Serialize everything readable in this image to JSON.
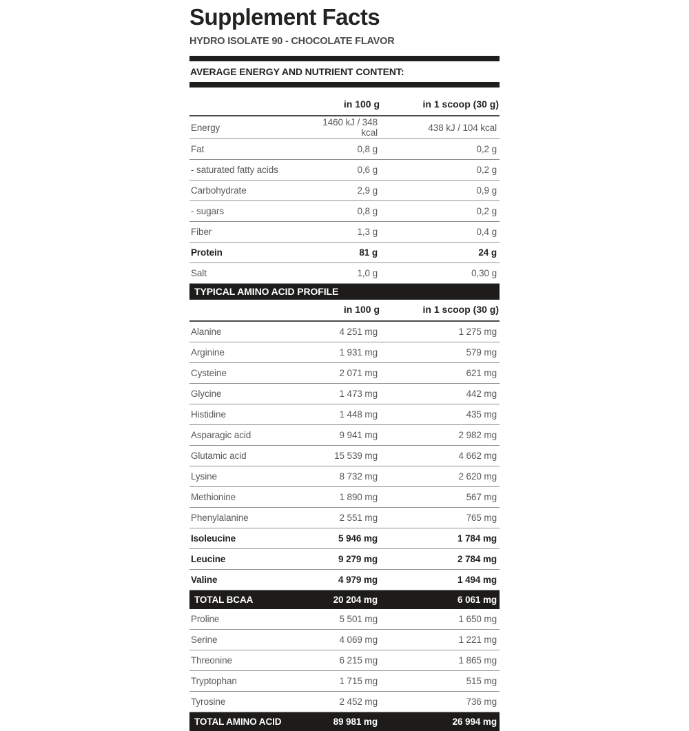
{
  "header": {
    "title": "Supplement Facts",
    "subtitle": "HYDRO ISOLATE 90 - CHOCOLATE FLAVOR"
  },
  "nutrient_table": {
    "section_title": "AVERAGE ENERGY AND NUTRIENT CONTENT:",
    "columns": {
      "per_100g": "in 100 g",
      "per_scoop": "in 1 scoop (30 g)"
    },
    "rows": [
      {
        "label": "Energy",
        "per100": "1460 kJ / 348 kcal",
        "perScoop": "438 kJ / 104 kcal"
      },
      {
        "label": "Fat",
        "per100": "0,8 g",
        "perScoop": "0,2 g"
      },
      {
        "label": "- saturated fatty acids",
        "per100": "0,6 g",
        "perScoop": "0,2 g"
      },
      {
        "label": "Carbohydrate",
        "per100": "2,9 g",
        "perScoop": "0,9 g"
      },
      {
        "label": "- sugars",
        "per100": "0,8 g",
        "perScoop": "0,2 g"
      },
      {
        "label": "Fiber",
        "per100": "1,3 g",
        "perScoop": "0,4 g"
      },
      {
        "label": "Protein",
        "per100": "81 g",
        "perScoop": "24 g",
        "style": "bold"
      },
      {
        "label": "Salt",
        "per100": "1,0 g",
        "perScoop": "0,30 g"
      }
    ]
  },
  "amino_table": {
    "section_title": "TYPICAL AMINO ACID PROFILE",
    "columns": {
      "per_100g": "in 100 g",
      "per_scoop": "in 1 scoop (30 g)"
    },
    "rows": [
      {
        "label": "Alanine",
        "per100": "4 251 mg",
        "perScoop": "1 275 mg"
      },
      {
        "label": "Arginine",
        "per100": "1 931 mg",
        "perScoop": "579 mg"
      },
      {
        "label": "Cysteine",
        "per100": "2 071 mg",
        "perScoop": "621 mg"
      },
      {
        "label": "Glycine",
        "per100": "1 473 mg",
        "perScoop": "442 mg"
      },
      {
        "label": "Histidine",
        "per100": "1 448 mg",
        "perScoop": "435 mg"
      },
      {
        "label": "Asparagic acid",
        "per100": "9 941 mg",
        "perScoop": "2 982 mg"
      },
      {
        "label": "Glutamic acid",
        "per100": "15 539 mg",
        "perScoop": "4 662 mg"
      },
      {
        "label": "Lysine",
        "per100": "8 732 mg",
        "perScoop": "2 620 mg"
      },
      {
        "label": "Methionine",
        "per100": "1 890 mg",
        "perScoop": "567 mg"
      },
      {
        "label": "Phenylalanine",
        "per100": "2 551 mg",
        "perScoop": "765 mg"
      },
      {
        "label": "Isoleucine",
        "per100": "5 946 mg",
        "perScoop": "1 784 mg",
        "style": "bold"
      },
      {
        "label": "Leucine",
        "per100": "9 279 mg",
        "perScoop": "2 784 mg",
        "style": "bold"
      },
      {
        "label": "Valine",
        "per100": "4 979 mg",
        "perScoop": "1 494 mg",
        "style": "bold"
      },
      {
        "label": "TOTAL BCAA",
        "per100": "20 204 mg",
        "perScoop": "6 061 mg",
        "style": "inverse"
      },
      {
        "label": "Proline",
        "per100": "5 501 mg",
        "perScoop": "1 650 mg"
      },
      {
        "label": "Serine",
        "per100": "4 069 mg",
        "perScoop": "1 221 mg"
      },
      {
        "label": "Threonine",
        "per100": "6 215 mg",
        "perScoop": "1 865 mg"
      },
      {
        "label": "Tryptophan",
        "per100": "1 715 mg",
        "perScoop": "515 mg"
      },
      {
        "label": "Tyrosine",
        "per100": "2 452 mg",
        "perScoop": "736 mg"
      },
      {
        "label": "TOTAL AMINO ACID",
        "per100": "89 981 mg",
        "perScoop": "26 994 mg",
        "style": "inverse"
      }
    ]
  },
  "colors": {
    "background": "#ffffff",
    "text_primary": "#242220",
    "text_secondary": "#59595b",
    "section_bar": "#1d1c1b",
    "row_divider": "#909090",
    "inverse_text": "#ffffff"
  }
}
